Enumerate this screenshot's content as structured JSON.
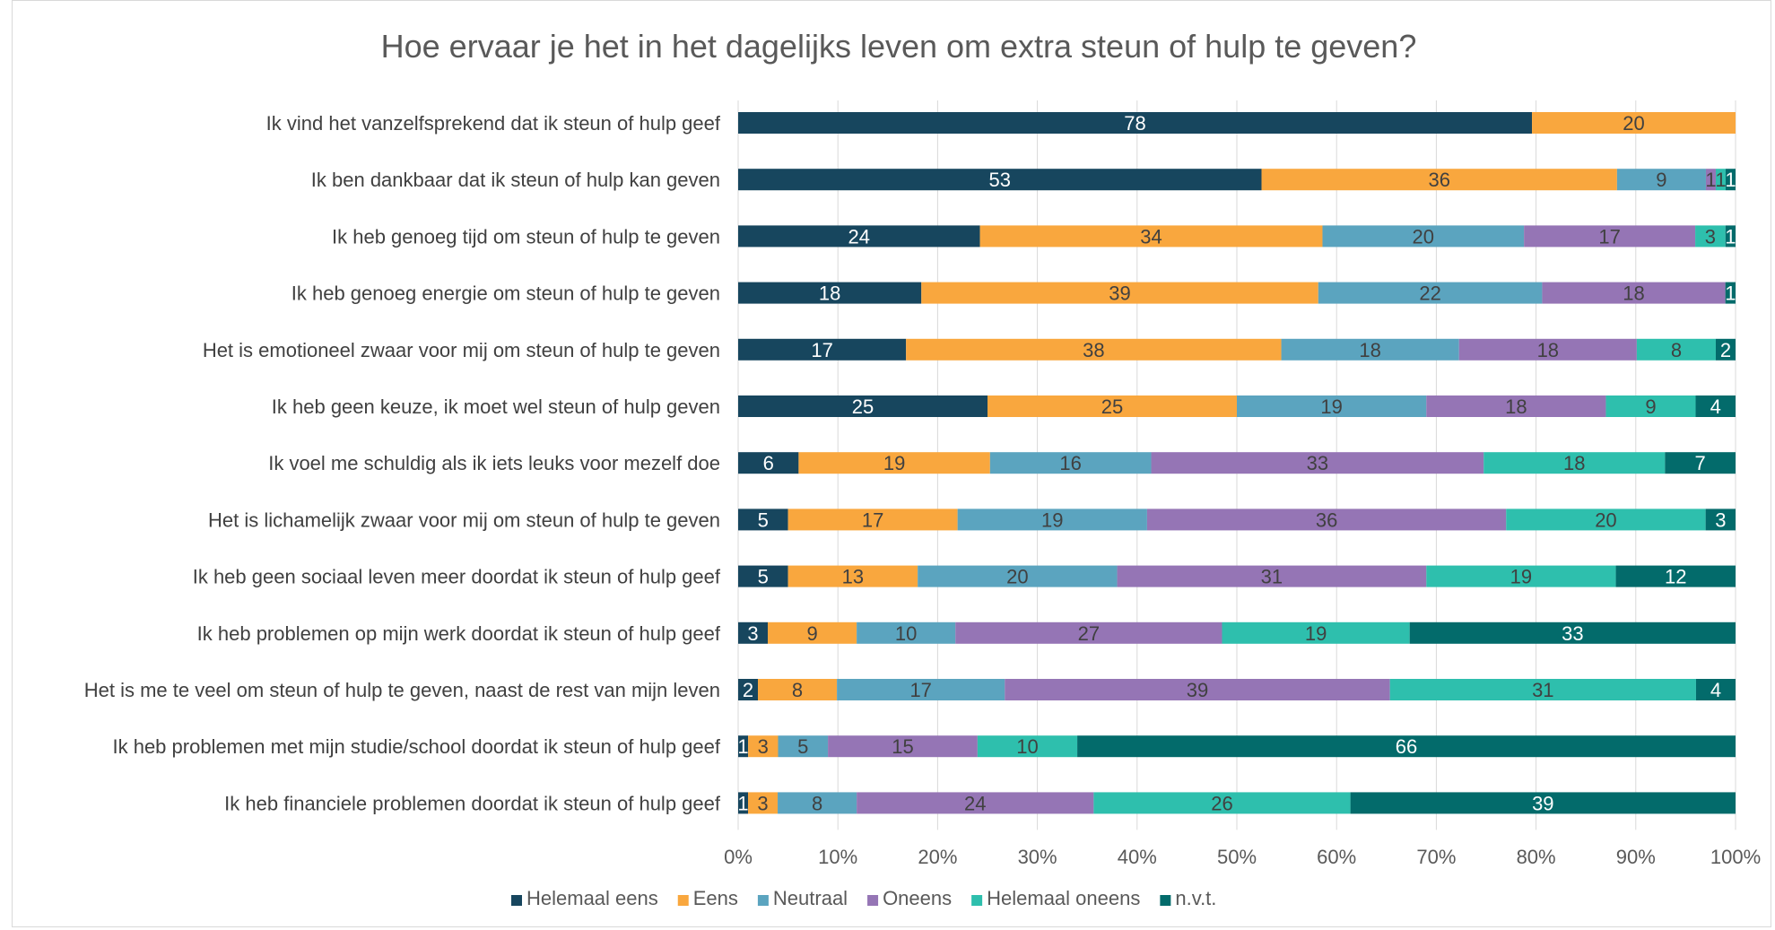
{
  "chart_data": {
    "type": "bar",
    "orientation": "horizontal",
    "stacked": "percent",
    "title": "Hoe ervaar je het in het dagelijks leven om extra steun of hulp te geven?",
    "categories": [
      "Ik vind het vanzelfsprekend dat ik steun of hulp geef",
      "Ik ben dankbaar dat ik steun of hulp kan geven",
      "Ik heb genoeg tijd om steun of hulp te geven",
      "Ik heb genoeg energie om steun of hulp te geven",
      "Het is emotioneel zwaar voor mij om steun of hulp te geven",
      "Ik heb geen keuze, ik moet wel steun of hulp geven",
      "Ik voel me schuldig als ik iets leuks voor mezelf doe",
      "Het is lichamelijk zwaar voor mij om steun of hulp te geven",
      "Ik heb geen sociaal leven meer doordat ik steun of hulp geef",
      "Ik heb problemen op mijn werk doordat ik steun of hulp geef",
      "Het is me te veel om steun of hulp te geven, naast de rest van mijn leven",
      "Ik heb problemen met mijn studie/school doordat ik steun of hulp geef",
      "Ik heb financiele problemen doordat ik steun of hulp geef"
    ],
    "series": [
      {
        "name": "Helemaal eens",
        "color": "#17465e",
        "label_color": "#ffffff",
        "values": [
          78,
          53,
          24,
          18,
          17,
          25,
          6,
          5,
          5,
          3,
          2,
          1,
          1
        ]
      },
      {
        "name": "Eens",
        "color": "#f9a73e",
        "label_color": "#404040",
        "values": [
          20,
          36,
          34,
          39,
          38,
          25,
          19,
          17,
          13,
          9,
          8,
          3,
          3
        ]
      },
      {
        "name": "Neutraal",
        "color": "#5ba4bf",
        "label_color": "#404040",
        "values": [
          0,
          9,
          20,
          22,
          18,
          19,
          16,
          19,
          20,
          10,
          17,
          5,
          8
        ]
      },
      {
        "name": "Oneens",
        "color": "#9575b5",
        "label_color": "#404040",
        "values": [
          0,
          1,
          17,
          18,
          18,
          18,
          33,
          36,
          31,
          27,
          39,
          15,
          24
        ]
      },
      {
        "name": "Helemaal oneens",
        "color": "#2ebfad",
        "label_color": "#404040",
        "values": [
          0,
          1,
          3,
          0,
          8,
          9,
          18,
          20,
          19,
          19,
          31,
          10,
          26
        ]
      },
      {
        "name": "n.v.t.",
        "color": "#036b6b",
        "label_color": "#ffffff",
        "values": [
          0,
          1,
          1,
          1,
          2,
          4,
          7,
          3,
          12,
          33,
          4,
          66,
          39
        ]
      }
    ],
    "x_ticks": [
      "0%",
      "10%",
      "20%",
      "30%",
      "40%",
      "50%",
      "60%",
      "70%",
      "80%",
      "90%",
      "100%"
    ],
    "xlim": [
      0,
      100
    ],
    "grid": true,
    "legend_position": "bottom"
  }
}
